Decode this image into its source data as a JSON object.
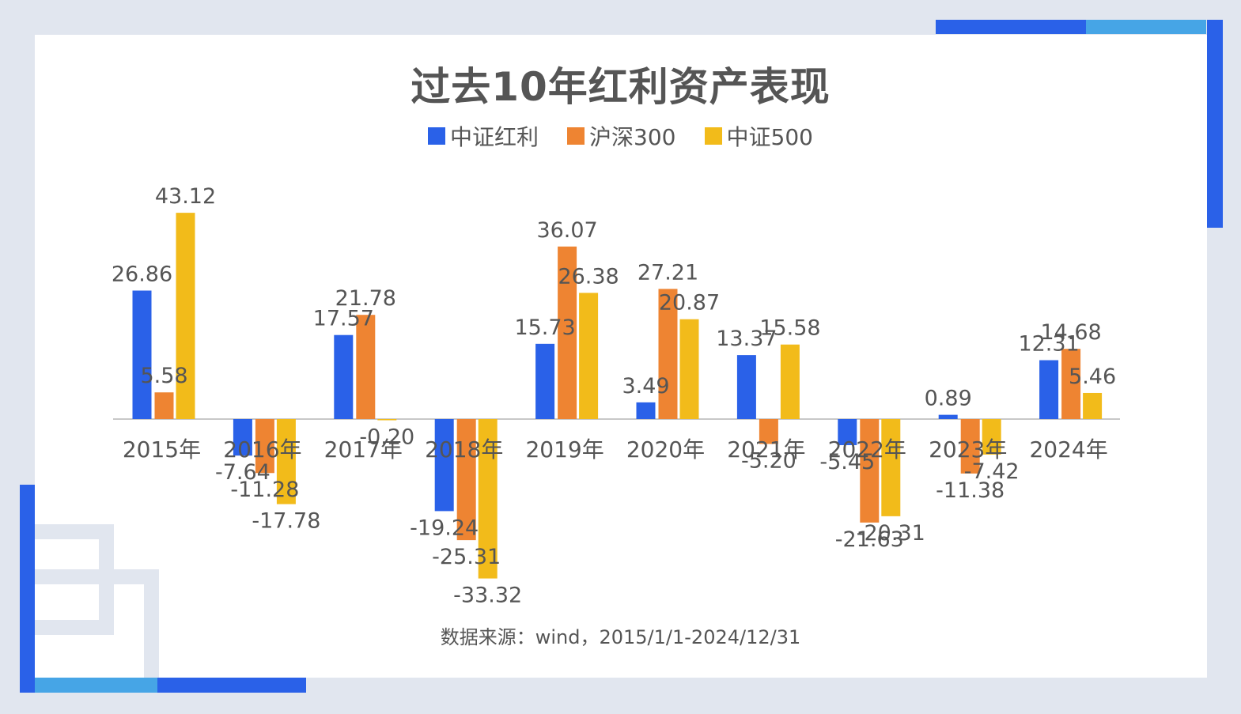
{
  "colors": {
    "background": "#e1e6ef",
    "accent_blue": "#2a61e8",
    "accent_light": "#46a5e6"
  },
  "title": "过去10年红利资产表现",
  "source": "数据来源：wind，2015/1/1-2024/12/31",
  "chart_data": {
    "type": "bar",
    "title": "过去10年红利资产表现",
    "categories": [
      "2015年",
      "2016年",
      "2017年",
      "2018年",
      "2019年",
      "2020年",
      "2021年",
      "2022年",
      "2023年",
      "2024年"
    ],
    "series": [
      {
        "name": "中证红利",
        "color": "#2a61e8",
        "values": [
          26.86,
          -7.64,
          17.57,
          -19.24,
          15.73,
          3.49,
          13.37,
          -5.45,
          0.89,
          12.31
        ]
      },
      {
        "name": "沪深300",
        "color": "#ee8432",
        "values": [
          5.58,
          -11.28,
          21.78,
          -25.31,
          36.07,
          27.21,
          -5.2,
          -21.63,
          -11.38,
          14.68
        ]
      },
      {
        "name": "中证500",
        "color": "#f2bb1a",
        "values": [
          43.12,
          -17.78,
          -0.2,
          -33.32,
          26.38,
          20.87,
          15.58,
          -20.31,
          -7.42,
          5.46
        ]
      }
    ],
    "labels": [
      [
        "26.86",
        "5.58",
        "43.12"
      ],
      [
        "-7.64",
        "-11.28",
        "-17.78"
      ],
      [
        "17.57",
        "21.78",
        "-0.20"
      ],
      [
        "-19.24",
        "-25.31",
        "-33.32"
      ],
      [
        "15.73",
        "36.07",
        "26.38"
      ],
      [
        "3.49",
        "27.21",
        "20.87"
      ],
      [
        "13.37",
        "-5.20",
        "15.58"
      ],
      [
        "-5.45",
        "-21.63",
        "-20.31"
      ],
      [
        "0.89",
        "-11.38",
        "-7.42"
      ],
      [
        "12.31",
        "14.68",
        "5.46"
      ]
    ],
    "ylim": [
      -33.32,
      43.12
    ],
    "grid": false,
    "legend_position": "top"
  }
}
